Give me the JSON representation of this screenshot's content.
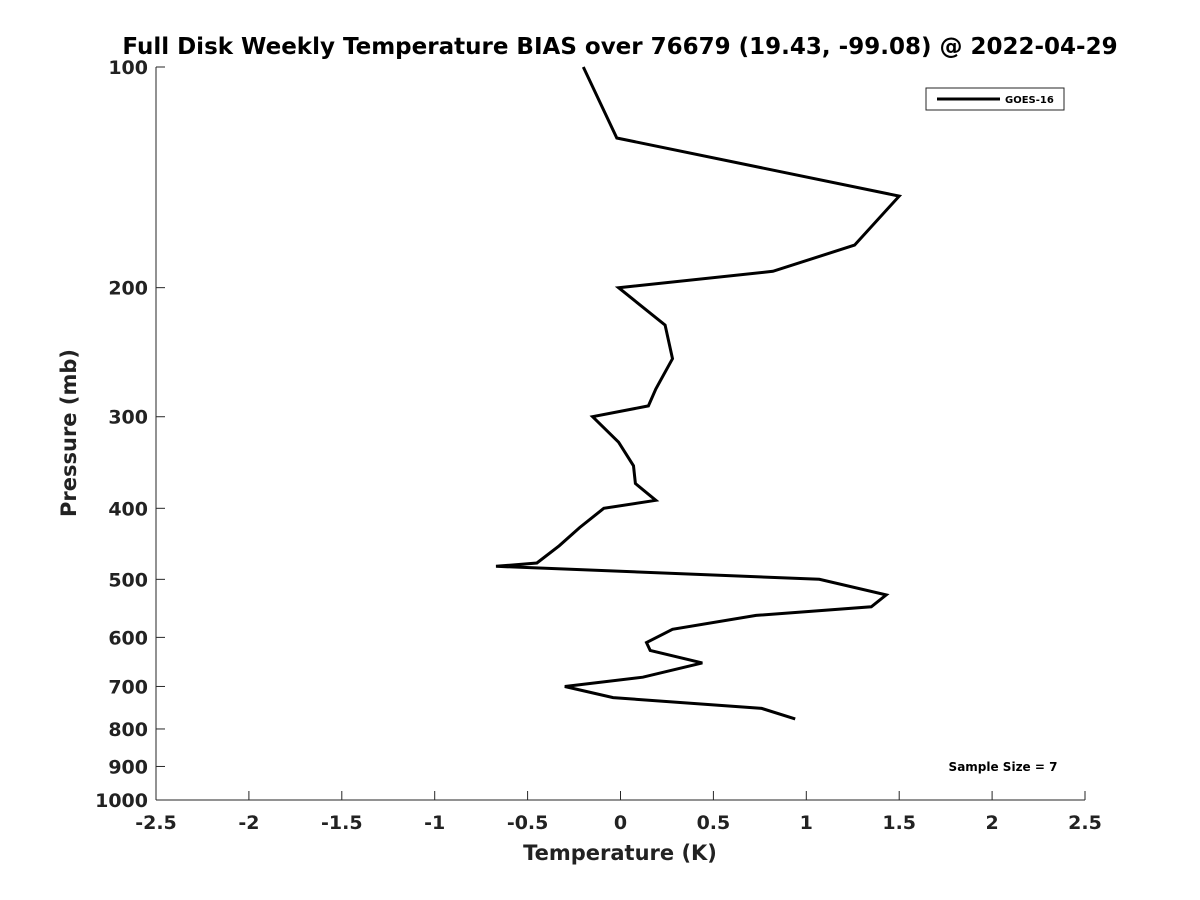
{
  "chart_data": {
    "type": "line",
    "title": "Full Disk Weekly Temperature BIAS over 76679 (19.43, -99.08) @ 2022-04-29",
    "xlabel": "Temperature (K)",
    "ylabel": "Pressure (mb)",
    "xlim": [
      -2.5,
      2.5
    ],
    "ylim": [
      100,
      1000
    ],
    "y_scale": "log",
    "y_reversed": true,
    "xticks": [
      -2.5,
      -2,
      -1.5,
      -1,
      -0.5,
      0,
      0.5,
      1,
      1.5,
      2,
      2.5
    ],
    "xtick_labels": [
      "-2.5",
      "-2",
      "-1.5",
      "-1",
      "-0.5",
      "0",
      "0.5",
      "1",
      "1.5",
      "2",
      "2.5"
    ],
    "yticks": [
      100,
      200,
      300,
      400,
      500,
      600,
      700,
      800,
      900,
      1000
    ],
    "ytick_labels": [
      "100",
      "200",
      "300",
      "400",
      "500",
      "600",
      "700",
      "800",
      "900",
      "1000"
    ],
    "grid": false,
    "legend": {
      "position": "top-right",
      "entries": [
        "GOES-16"
      ]
    },
    "annotation": "Sample Size = 7",
    "series": [
      {
        "name": "GOES-16",
        "color": "#000000",
        "points": [
          [
            -0.2,
            100
          ],
          [
            -0.02,
            125
          ],
          [
            1.5,
            150
          ],
          [
            1.26,
            175
          ],
          [
            0.82,
            190
          ],
          [
            -0.01,
            200
          ],
          [
            0.24,
            225
          ],
          [
            0.28,
            250
          ],
          [
            0.19,
            275
          ],
          [
            0.15,
            290
          ],
          [
            -0.15,
            300
          ],
          [
            -0.01,
            325
          ],
          [
            0.07,
            350
          ],
          [
            0.08,
            370
          ],
          [
            0.19,
            390
          ],
          [
            -0.09,
            400
          ],
          [
            -0.22,
            425
          ],
          [
            -0.33,
            450
          ],
          [
            -0.45,
            475
          ],
          [
            -0.67,
            480
          ],
          [
            1.07,
            500
          ],
          [
            1.43,
            525
          ],
          [
            1.35,
            545
          ],
          [
            0.73,
            560
          ],
          [
            0.28,
            585
          ],
          [
            0.14,
            610
          ],
          [
            0.16,
            625
          ],
          [
            0.44,
            650
          ],
          [
            0.12,
            680
          ],
          [
            -0.3,
            700
          ],
          [
            -0.04,
            725
          ],
          [
            0.76,
            750
          ],
          [
            0.94,
            775
          ]
        ]
      }
    ]
  }
}
